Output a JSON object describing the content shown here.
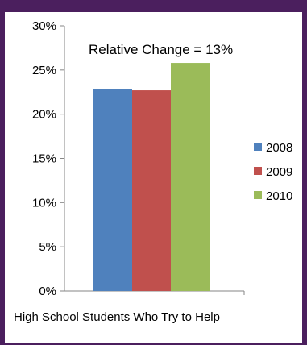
{
  "chart_data": {
    "type": "bar",
    "categories": [
      "High School Students Who Try to Help"
    ],
    "series": [
      {
        "name": "2008",
        "values": [
          0.228
        ],
        "color": "#4f81bd"
      },
      {
        "name": "2009",
        "values": [
          0.227
        ],
        "color": "#c0504d"
      },
      {
        "name": "2010",
        "values": [
          0.258
        ],
        "color": "#9bbb59"
      }
    ],
    "ylim": [
      0,
      0.3
    ],
    "yticks": [
      0,
      0.05,
      0.1,
      0.15,
      0.2,
      0.25,
      0.3
    ],
    "ytick_labels": [
      "0%",
      "5%",
      "10%",
      "15%",
      "20%",
      "25%",
      "30%"
    ],
    "annotation": "Relative Change = 13%",
    "xlabel": "High School Students Who Try to Help",
    "legend_position": "right",
    "grid": false
  }
}
